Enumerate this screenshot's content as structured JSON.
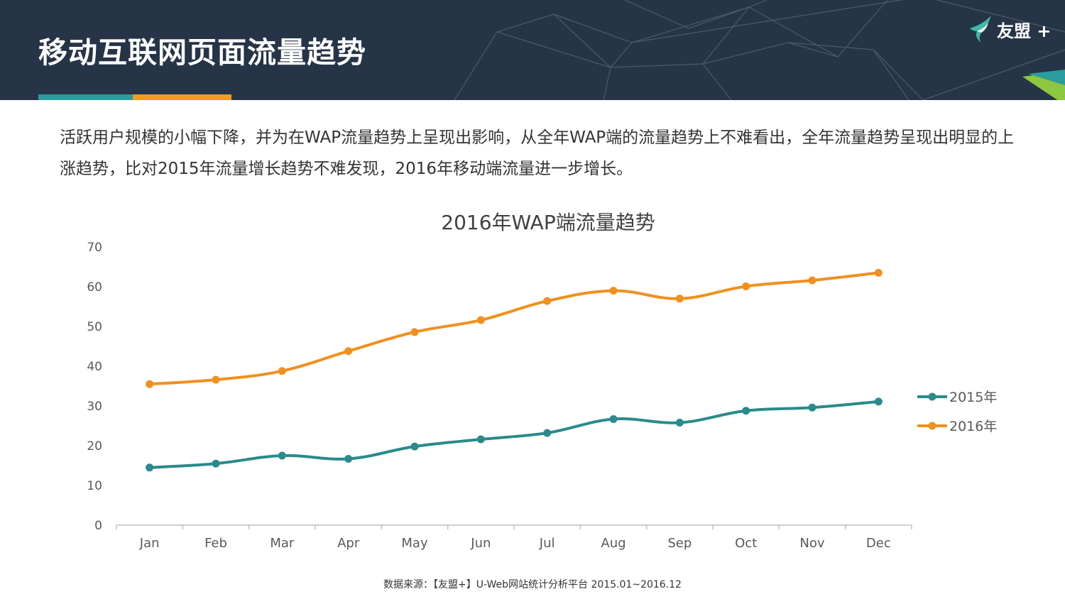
{
  "header": {
    "title": "移动互联网页面流量趋势",
    "logo_text": "友盟 +",
    "colors": {
      "background": "#263447",
      "accent_teal": "#2a9d9f",
      "accent_orange": "#f29b1d",
      "accent_green": "#8dc63f"
    }
  },
  "intro_text": "活跃用户规模的小幅下降，并为在WAP流量趋势上呈现出影响，从全年WAP端的流量趋势上不难看出，全年流量趋势呈现出明显的上涨趋势，比对2015年流量增长趋势不难发现，2016年移动端流量进一步增长。",
  "chart_data": {
    "type": "line",
    "title": "2016年WAP端流量趋势",
    "categories": [
      "Jan",
      "Feb",
      "Mar",
      "Apr",
      "May",
      "Jun",
      "Jul",
      "Aug",
      "Sep",
      "Oct",
      "Nov",
      "Dec"
    ],
    "series": [
      {
        "name": "2015年",
        "color": "#2a8a8c",
        "values": [
          14.5,
          15.5,
          17.5,
          16.7,
          19.8,
          21.6,
          23.2,
          26.7,
          25.8,
          28.8,
          29.6,
          31.1
        ]
      },
      {
        "name": "2016年",
        "color": "#f0901e",
        "values": [
          35.5,
          36.6,
          38.8,
          43.8,
          48.6,
          51.6,
          56.4,
          59.0,
          57.0,
          60.1,
          61.6,
          63.5
        ]
      }
    ],
    "xlabel": "",
    "ylabel": "",
    "ylim": [
      0,
      70
    ],
    "yticks": [
      0,
      10,
      20,
      30,
      40,
      50,
      60,
      70
    ],
    "legend_position": "right",
    "grid": false,
    "smooth": true
  },
  "footer": {
    "source": "数据来源：【友盟+】U-Web网站统计分析平台 2015.01~2016.12"
  }
}
